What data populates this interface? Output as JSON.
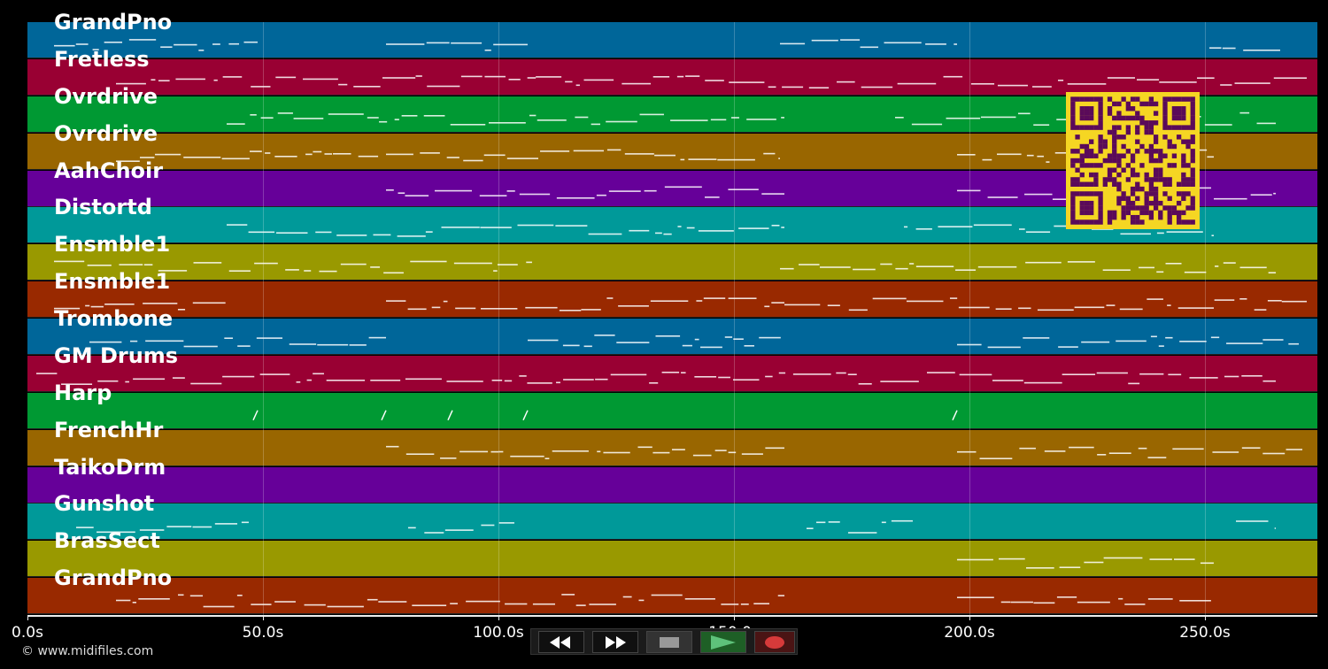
{
  "tracks": [
    {
      "label": "GrandPno",
      "color": "#006699"
    },
    {
      "label": "Fretless",
      "color": "#990033"
    },
    {
      "label": "Ovrdrive",
      "color": "#009933"
    },
    {
      "label": "Ovrdrive",
      "color": "#996600"
    },
    {
      "label": "AahChoir",
      "color": "#660099"
    },
    {
      "label": "Distortd",
      "color": "#009999"
    },
    {
      "label": "Ensmble1",
      "color": "#999900"
    },
    {
      "label": "Ensmble1",
      "color": "#992900"
    },
    {
      "label": "Trombone",
      "color": "#006699"
    },
    {
      "label": "GM Drums",
      "color": "#990033"
    },
    {
      "label": "Harp",
      "color": "#009933"
    },
    {
      "label": "FrenchHr",
      "color": "#996600"
    },
    {
      "label": "TaikoDrm",
      "color": "#660099"
    },
    {
      "label": "Gunshot",
      "color": "#009999"
    },
    {
      "label": "BrasSect",
      "color": "#999900"
    },
    {
      "label": "GrandPno",
      "color": "#992900"
    }
  ],
  "timeline": {
    "ticks": [
      "0.0s",
      "50.0s",
      "100.0s",
      "150.0s",
      "200.0s",
      "250.0s"
    ]
  },
  "transport": {
    "buttons": [
      {
        "name": "rewind-button",
        "icon": "rewind-icon"
      },
      {
        "name": "fast-forward-button",
        "icon": "fast-forward-icon"
      },
      {
        "name": "stop-button",
        "icon": "stop-icon"
      },
      {
        "name": "play-button",
        "icon": "play-icon"
      },
      {
        "name": "record-button",
        "icon": "record-icon"
      }
    ]
  },
  "copyright": "© www.midifiles.com",
  "overlay": {
    "icon": "qr-code-icon",
    "fg": "#5a0a5a",
    "bg": "#f5d623"
  }
}
